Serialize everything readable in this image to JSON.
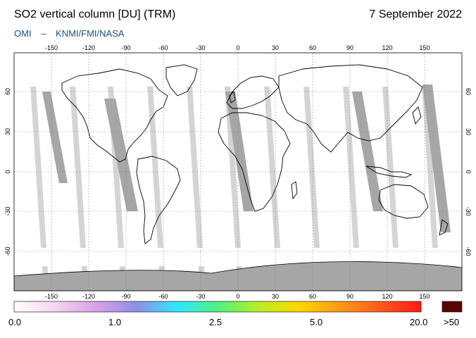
{
  "header": {
    "title": "SO2 vertical column [DU] (TRM)",
    "date": "7 September 2022",
    "instrument": "OMI",
    "separator": "–",
    "organizations": "KNMI/FMI/NASA"
  },
  "map": {
    "lon_ticks": [
      "-150",
      "-120",
      "-90",
      "-60",
      "-30",
      "0",
      "30",
      "60",
      "90",
      "120",
      "150"
    ],
    "lat_ticks": [
      "60",
      "30",
      "0",
      "-30",
      "-60"
    ],
    "colors": {
      "ocean_gap": "#d4d4d4",
      "orbit_swath": "#ffffff",
      "dark_swath": "#a6a6a6",
      "coastline": "#000000",
      "grid": "#7a7a7a"
    }
  },
  "colorbar": {
    "labels": [
      "0.0",
      "1.0",
      "2.5",
      "5.0",
      "20.0",
      ">50"
    ],
    "gradient_colors": [
      "#ffffff",
      "#f4d6f1",
      "#d9a2e6",
      "#8f8fe6",
      "#2fe8ff",
      "#4ef27e",
      "#b8ee26",
      "#ffd700",
      "#ff8c1a",
      "#ff1a1a"
    ],
    "overflow_color": "#5a0505"
  }
}
